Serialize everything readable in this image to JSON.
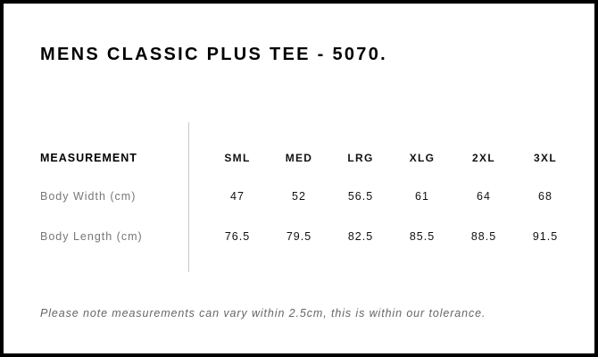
{
  "title": "MENS CLASSIC PLUS TEE - 5070.",
  "table": {
    "header_label": "MEASUREMENT",
    "sizes": [
      "SML",
      "MED",
      "LRG",
      "XLG",
      "2XL",
      "3XL"
    ],
    "rows": [
      {
        "label": "Body Width (cm)",
        "values": [
          "47",
          "52",
          "56.5",
          "61",
          "64",
          "68"
        ]
      },
      {
        "label": "Body Length (cm)",
        "values": [
          "76.5",
          "79.5",
          "82.5",
          "85.5",
          "88.5",
          "91.5"
        ]
      }
    ]
  },
  "note": "Please note measurements can vary within 2.5cm, this is within our tolerance."
}
